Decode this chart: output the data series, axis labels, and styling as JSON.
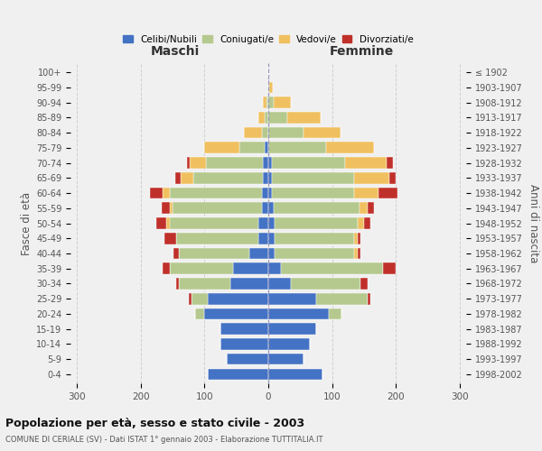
{
  "age_groups": [
    "0-4",
    "5-9",
    "10-14",
    "15-19",
    "20-24",
    "25-29",
    "30-34",
    "35-39",
    "40-44",
    "45-49",
    "50-54",
    "55-59",
    "60-64",
    "65-69",
    "70-74",
    "75-79",
    "80-84",
    "85-89",
    "90-94",
    "95-99",
    "100+"
  ],
  "birth_years": [
    "1998-2002",
    "1993-1997",
    "1988-1992",
    "1983-1987",
    "1978-1982",
    "1973-1977",
    "1968-1972",
    "1963-1967",
    "1958-1962",
    "1953-1957",
    "1948-1952",
    "1943-1947",
    "1938-1942",
    "1933-1937",
    "1928-1932",
    "1923-1927",
    "1918-1922",
    "1913-1917",
    "1908-1912",
    "1903-1907",
    "≤ 1902"
  ],
  "colors": {
    "celibi": "#4472c4",
    "coniugati": "#b5c98e",
    "vedovi": "#f0c060",
    "divorziati": "#c0302a"
  },
  "maschi": {
    "celibi": [
      95,
      65,
      75,
      75,
      100,
      95,
      60,
      55,
      30,
      15,
      15,
      10,
      10,
      8,
      8,
      5,
      0,
      0,
      0,
      0,
      0
    ],
    "coniugati": [
      0,
      0,
      0,
      0,
      15,
      25,
      80,
      100,
      110,
      130,
      140,
      140,
      145,
      110,
      90,
      40,
      10,
      5,
      3,
      0,
      0
    ],
    "vedovi": [
      0,
      0,
      0,
      0,
      0,
      0,
      0,
      0,
      0,
      0,
      5,
      5,
      10,
      20,
      25,
      55,
      28,
      10,
      5,
      0,
      0
    ],
    "divorziati": [
      0,
      0,
      0,
      0,
      0,
      5,
      5,
      10,
      8,
      18,
      15,
      12,
      20,
      8,
      5,
      0,
      0,
      0,
      0,
      0,
      0
    ]
  },
  "femmine": {
    "celibi": [
      85,
      55,
      65,
      75,
      95,
      75,
      35,
      20,
      10,
      10,
      10,
      8,
      5,
      5,
      5,
      0,
      0,
      0,
      0,
      0,
      0
    ],
    "coniugati": [
      0,
      0,
      0,
      0,
      20,
      80,
      110,
      160,
      125,
      125,
      130,
      135,
      130,
      130,
      115,
      90,
      55,
      30,
      8,
      2,
      0
    ],
    "vedovi": [
      0,
      0,
      0,
      0,
      0,
      0,
      0,
      0,
      5,
      5,
      10,
      12,
      38,
      55,
      65,
      75,
      58,
      52,
      28,
      5,
      0
    ],
    "divorziati": [
      0,
      0,
      0,
      0,
      0,
      5,
      10,
      20,
      5,
      5,
      10,
      10,
      30,
      10,
      10,
      0,
      0,
      0,
      0,
      0,
      0
    ]
  },
  "xlim": 310,
  "title": "Popolazione per età, sesso e stato civile - 2003",
  "subtitle": "COMUNE DI CERIALE (SV) - Dati ISTAT 1° gennaio 2003 - Elaborazione TUTTITALIA.IT",
  "ylabel_left": "Fasce di età",
  "ylabel_right": "Anni di nascita",
  "xlabel_maschi": "Maschi",
  "xlabel_femmine": "Femmine",
  "legend_labels": [
    "Celibi/Nubili",
    "Coniugati/e",
    "Vedovi/e",
    "Divorziati/e"
  ],
  "background_color": "#f0f0f0",
  "bar_height": 0.75,
  "grid_color": "#cccccc"
}
